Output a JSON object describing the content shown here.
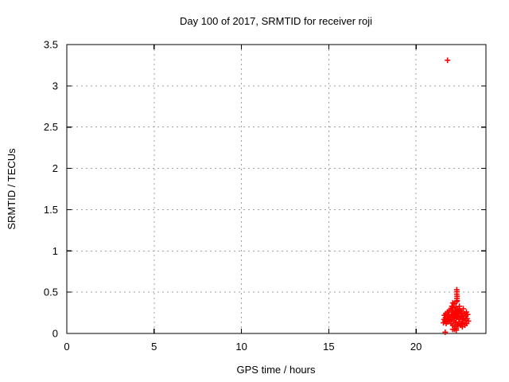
{
  "window": {
    "background": "#ffffff",
    "text_color": "#000000"
  },
  "chart_data": {
    "type": "scatter",
    "title": "Day 100 of 2017, SRMTID for receiver roji",
    "xlabel": "GPS time / hours",
    "ylabel": "SRMTID / TECUs",
    "xlim": [
      0,
      24
    ],
    "ylim": [
      0,
      3.5
    ],
    "xticks": [
      0,
      5,
      10,
      15,
      20
    ],
    "yticks": [
      0,
      0.5,
      1,
      1.5,
      2,
      2.5,
      3,
      3.5
    ],
    "grid": true,
    "legend_position": "none",
    "marker": "plus",
    "marker_color": "#ff0000",
    "grid_color": "#a0a0a0",
    "border_color": "#000000",
    "series": [
      {
        "name": "SRMTID",
        "points": [
          [
            21.8,
            3.31
          ],
          [
            22.33,
            0.53
          ],
          [
            22.34,
            0.505
          ],
          [
            22.33,
            0.475
          ],
          [
            22.35,
            0.45
          ],
          [
            22.34,
            0.425
          ],
          [
            22.35,
            0.4
          ],
          [
            22.33,
            0.385
          ],
          [
            21.57,
            0.13
          ],
          [
            21.6,
            0.17
          ],
          [
            21.62,
            0.22
          ],
          [
            21.65,
            0.15
          ],
          [
            21.68,
            0.19
          ],
          [
            21.7,
            0.24
          ],
          [
            21.72,
            0.12
          ],
          [
            21.75,
            0.16
          ],
          [
            21.78,
            0.21
          ],
          [
            21.8,
            0.26
          ],
          [
            21.82,
            0.14
          ],
          [
            21.85,
            0.18
          ],
          [
            21.88,
            0.23
          ],
          [
            21.9,
            0.28
          ],
          [
            21.92,
            0.16
          ],
          [
            21.95,
            0.2
          ],
          [
            22.0,
            0.3
          ],
          [
            22.0,
            0.12
          ],
          [
            22.02,
            0.22
          ],
          [
            22.05,
            0.17
          ],
          [
            22.05,
            0.33
          ],
          [
            22.08,
            0.26
          ],
          [
            22.1,
            0.1
          ],
          [
            22.1,
            0.2
          ],
          [
            22.1,
            0.37
          ],
          [
            22.12,
            0.31
          ],
          [
            22.15,
            0.15
          ],
          [
            22.15,
            0.24
          ],
          [
            22.18,
            0.36
          ],
          [
            22.2,
            0.08
          ],
          [
            22.2,
            0.19
          ],
          [
            22.22,
            0.28
          ],
          [
            22.25,
            0.13
          ],
          [
            22.25,
            0.23
          ],
          [
            22.28,
            0.32
          ],
          [
            22.3,
            0.06
          ],
          [
            22.3,
            0.18
          ],
          [
            22.32,
            0.27
          ],
          [
            22.35,
            0.11
          ],
          [
            22.35,
            0.22
          ],
          [
            22.38,
            0.3
          ],
          [
            22.4,
            0.09
          ],
          [
            22.4,
            0.2
          ],
          [
            22.42,
            0.26
          ],
          [
            22.45,
            0.14
          ],
          [
            22.45,
            0.24
          ],
          [
            22.48,
            0.33
          ],
          [
            22.5,
            0.17
          ],
          [
            22.5,
            0.28
          ],
          [
            22.55,
            0.1
          ],
          [
            22.55,
            0.21
          ],
          [
            22.58,
            0.27
          ],
          [
            22.6,
            0.12
          ],
          [
            22.6,
            0.19
          ],
          [
            22.62,
            0.25
          ],
          [
            22.65,
            0.08
          ],
          [
            22.65,
            0.17
          ],
          [
            22.68,
            0.22
          ],
          [
            22.7,
            0.3
          ],
          [
            22.72,
            0.13
          ],
          [
            22.75,
            0.18
          ],
          [
            22.78,
            0.24
          ],
          [
            22.8,
            0.1
          ],
          [
            22.82,
            0.16
          ],
          [
            22.85,
            0.21
          ],
          [
            22.88,
            0.26
          ],
          [
            22.9,
            0.12
          ],
          [
            22.92,
            0.18
          ],
          [
            22.95,
            0.23
          ],
          [
            23.0,
            0.15
          ],
          [
            22.1,
            0.05
          ],
          [
            22.2,
            0.05
          ],
          [
            22.3,
            0.04
          ],
          [
            21.67,
            0.015
          ]
        ]
      }
    ]
  }
}
